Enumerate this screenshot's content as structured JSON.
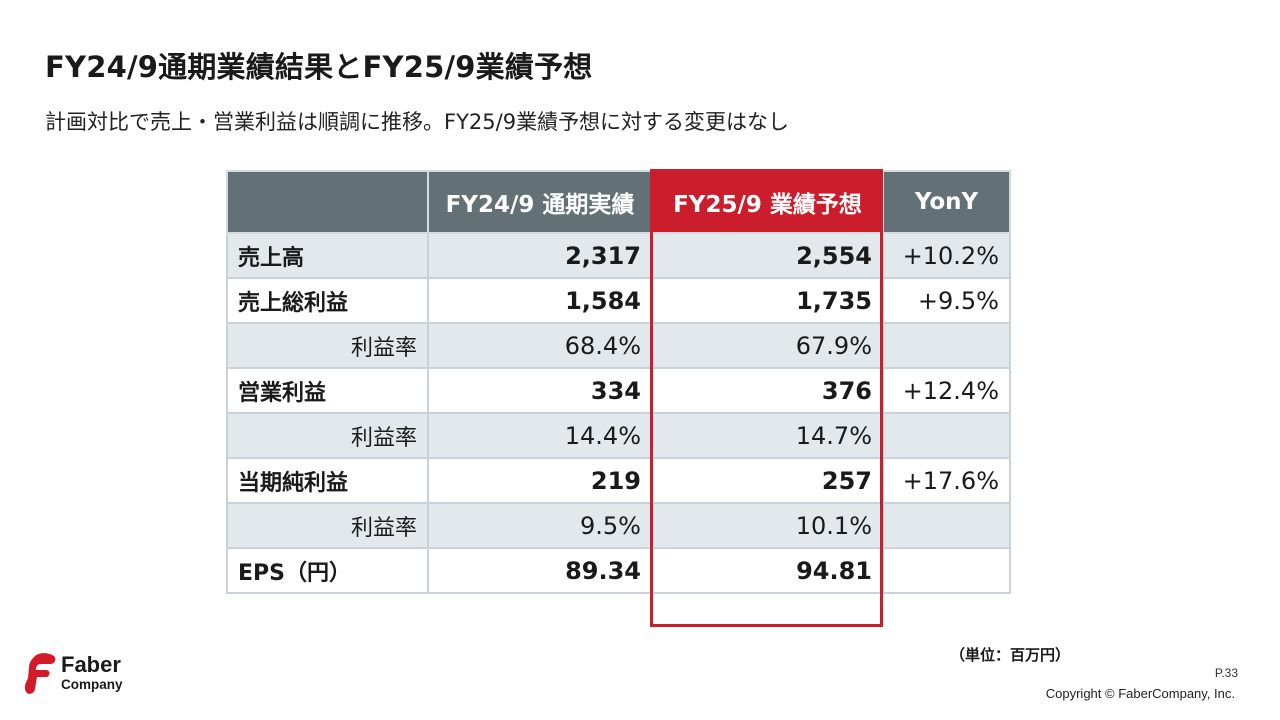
{
  "title": "FY24/9通期業績結果とFY25/9業績予想",
  "subtitle": "計画対比で売上・営業利益は順調に推移。FY25/9業績予想に対する変更はなし",
  "accent_color": "#cc1d2c",
  "header_color": "#637075",
  "table": {
    "headers": [
      "",
      "FY24/9 通期実績",
      "FY25/9 業績予想",
      "YonY"
    ],
    "rows": [
      {
        "label": "売上高",
        "fy24": "2,317",
        "fy25": "2,554",
        "yony": "+10.2%"
      },
      {
        "label": "売上総利益",
        "fy24": "1,584",
        "fy25": "1,735",
        "yony": "+9.5%"
      },
      {
        "label": "利益率",
        "fy24": "68.4%",
        "fy25": "67.9%",
        "yony": ""
      },
      {
        "label": "営業利益",
        "fy24": "334",
        "fy25": "376",
        "yony": "+12.4%"
      },
      {
        "label": "利益率",
        "fy24": "14.4%",
        "fy25": "14.7%",
        "yony": ""
      },
      {
        "label": "当期純利益",
        "fy24": "219",
        "fy25": "257",
        "yony": "+17.6%"
      },
      {
        "label": "利益率",
        "fy24": "9.5%",
        "fy25": "10.1%",
        "yony": ""
      },
      {
        "label": "EPS（円）",
        "fy24": "89.34",
        "fy25": "94.81",
        "yony": ""
      }
    ]
  },
  "unit_note": "（単位：百万円）",
  "page_number": "P.33",
  "copyright": "Copyright © FaberCompany, Inc.",
  "logo": {
    "line1": "Faber",
    "line2": "Company",
    "icon": "faber-logo-mark-icon"
  }
}
